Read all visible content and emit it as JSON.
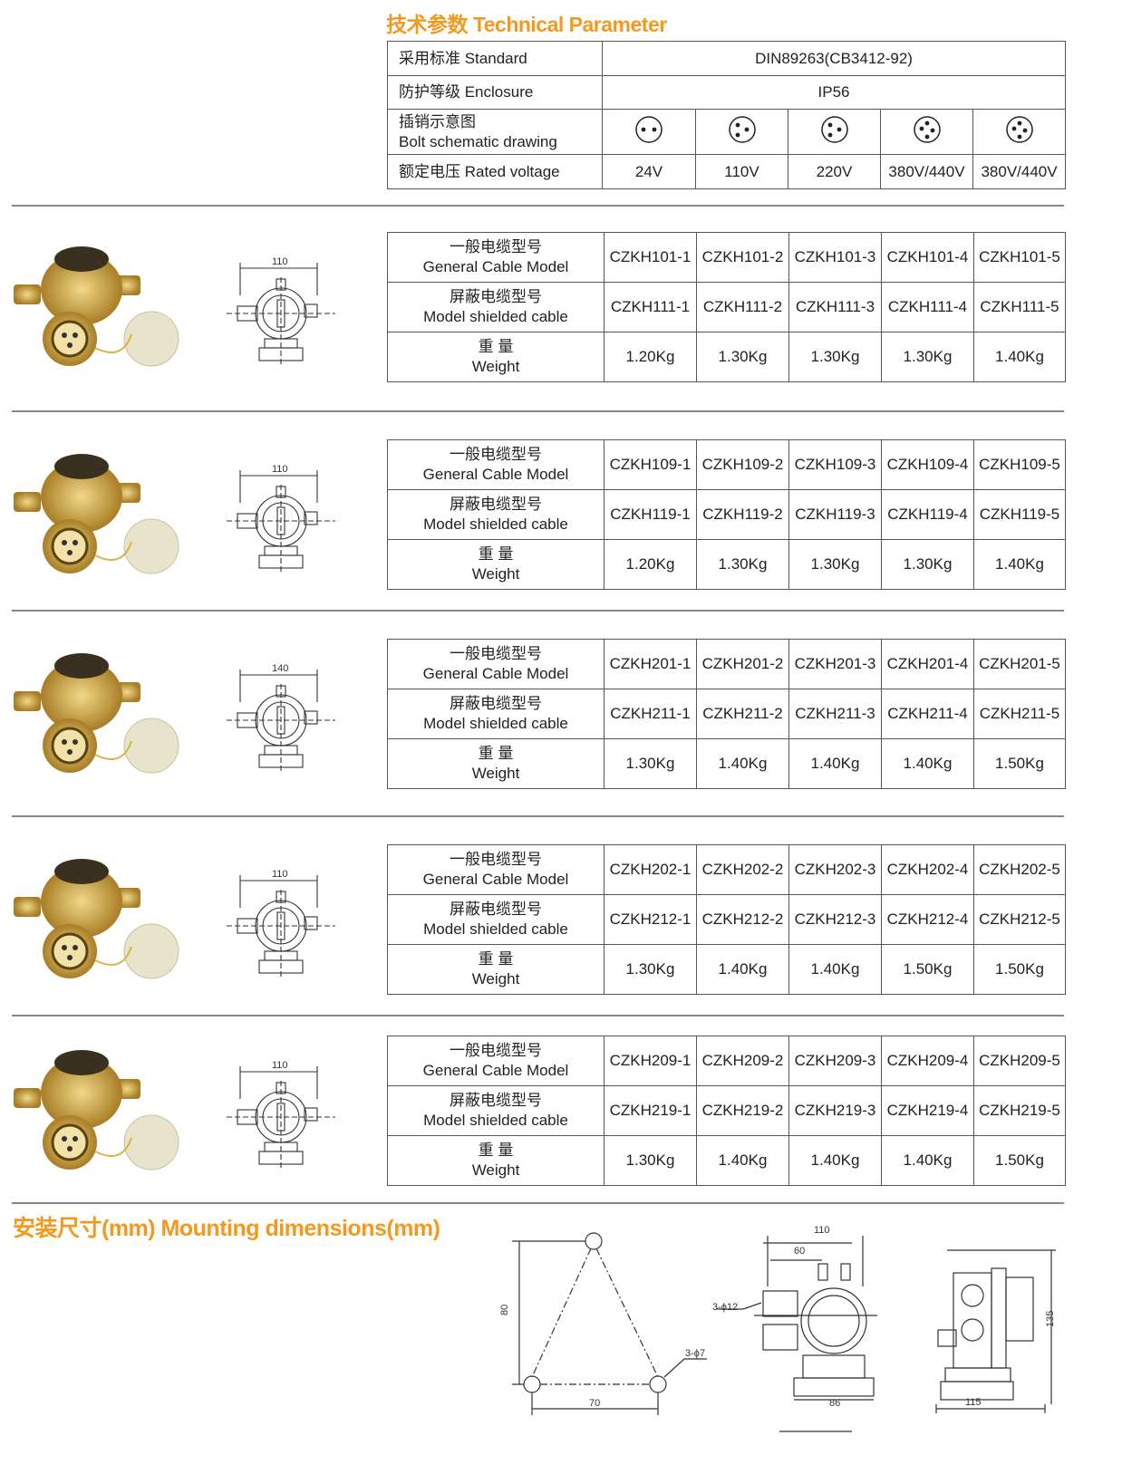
{
  "header": {
    "title": "技术参数 Technical Parameter"
  },
  "tech_table": {
    "standard": {
      "label": "采用标准  Standard",
      "value": "DIN89263(CB3412-92)"
    },
    "enclosure": {
      "label": "防护等级  Enclosure",
      "value": "IP56"
    },
    "bolt": {
      "label_cn": "插销示意图",
      "label_en": "Bolt schematic drawing",
      "icons": [
        "2-pin-socket-icon",
        "3-pin-socket-icon",
        "3-pin-socket-icon",
        "4-pin-socket-icon",
        "4-pin-socket-icon"
      ]
    },
    "voltage": {
      "label": "额定电压  Rated voltage",
      "values": [
        "24V",
        "110V",
        "220V",
        "380V/440V",
        "380V/440V"
      ]
    }
  },
  "row_labels": {
    "general_cn": "一般电缆型号",
    "general_en": "General Cable Model",
    "shielded_cn": "屏蔽电缆型号",
    "shielded_en": "Model shielded cable",
    "weight_cn": "重  量",
    "weight_en": "Weight"
  },
  "products": [
    {
      "dimension": "110",
      "general": [
        "CZKH101-1",
        "CZKH101-2",
        "CZKH101-3",
        "CZKH101-4",
        "CZKH101-5"
      ],
      "shielded": [
        "CZKH111-1",
        "CZKH111-2",
        "CZKH111-3",
        "CZKH111-4",
        "CZKH111-5"
      ],
      "weight": [
        "1.20Kg",
        "1.30Kg",
        "1.30Kg",
        "1.30Kg",
        "1.40Kg"
      ]
    },
    {
      "dimension": "110",
      "general": [
        "CZKH109-1",
        "CZKH109-2",
        "CZKH109-3",
        "CZKH109-4",
        "CZKH109-5"
      ],
      "shielded": [
        "CZKH119-1",
        "CZKH119-2",
        "CZKH119-3",
        "CZKH119-4",
        "CZKH119-5"
      ],
      "weight": [
        "1.20Kg",
        "1.30Kg",
        "1.30Kg",
        "1.30Kg",
        "1.40Kg"
      ]
    },
    {
      "dimension": "140",
      "general": [
        "CZKH201-1",
        "CZKH201-2",
        "CZKH201-3",
        "CZKH201-4",
        "CZKH201-5"
      ],
      "shielded": [
        "CZKH211-1",
        "CZKH211-2",
        "CZKH211-3",
        "CZKH211-4",
        "CZKH211-5"
      ],
      "weight": [
        "1.30Kg",
        "1.40Kg",
        "1.40Kg",
        "1.40Kg",
        "1.50Kg"
      ]
    },
    {
      "dimension": "110",
      "general": [
        "CZKH202-1",
        "CZKH202-2",
        "CZKH202-3",
        "CZKH202-4",
        "CZKH202-5"
      ],
      "shielded": [
        "CZKH212-1",
        "CZKH212-2",
        "CZKH212-3",
        "CZKH212-4",
        "CZKH212-5"
      ],
      "weight": [
        "1.30Kg",
        "1.40Kg",
        "1.40Kg",
        "1.50Kg",
        "1.50Kg"
      ]
    },
    {
      "dimension": "110",
      "general": [
        "CZKH209-1",
        "CZKH209-2",
        "CZKH209-3",
        "CZKH209-4",
        "CZKH209-5"
      ],
      "shielded": [
        "CZKH219-1",
        "CZKH219-2",
        "CZKH219-3",
        "CZKH219-4",
        "CZKH219-5"
      ],
      "weight": [
        "1.30Kg",
        "1.40Kg",
        "1.40Kg",
        "1.40Kg",
        "1.50Kg"
      ]
    }
  ],
  "mounting": {
    "title": "安装尺寸(mm)   Mounting dimensions(mm)",
    "hole_pattern": {
      "height": "80",
      "width": "70",
      "holes": "3-ϕ7"
    },
    "front": {
      "overall": "110",
      "offset": "60",
      "entries": "3-ϕ12",
      "base": "86"
    },
    "side": {
      "height": "135",
      "depth": "115"
    }
  },
  "colors": {
    "accent": "#f39a1e",
    "brass": "#c9a244",
    "border": "#555555"
  }
}
